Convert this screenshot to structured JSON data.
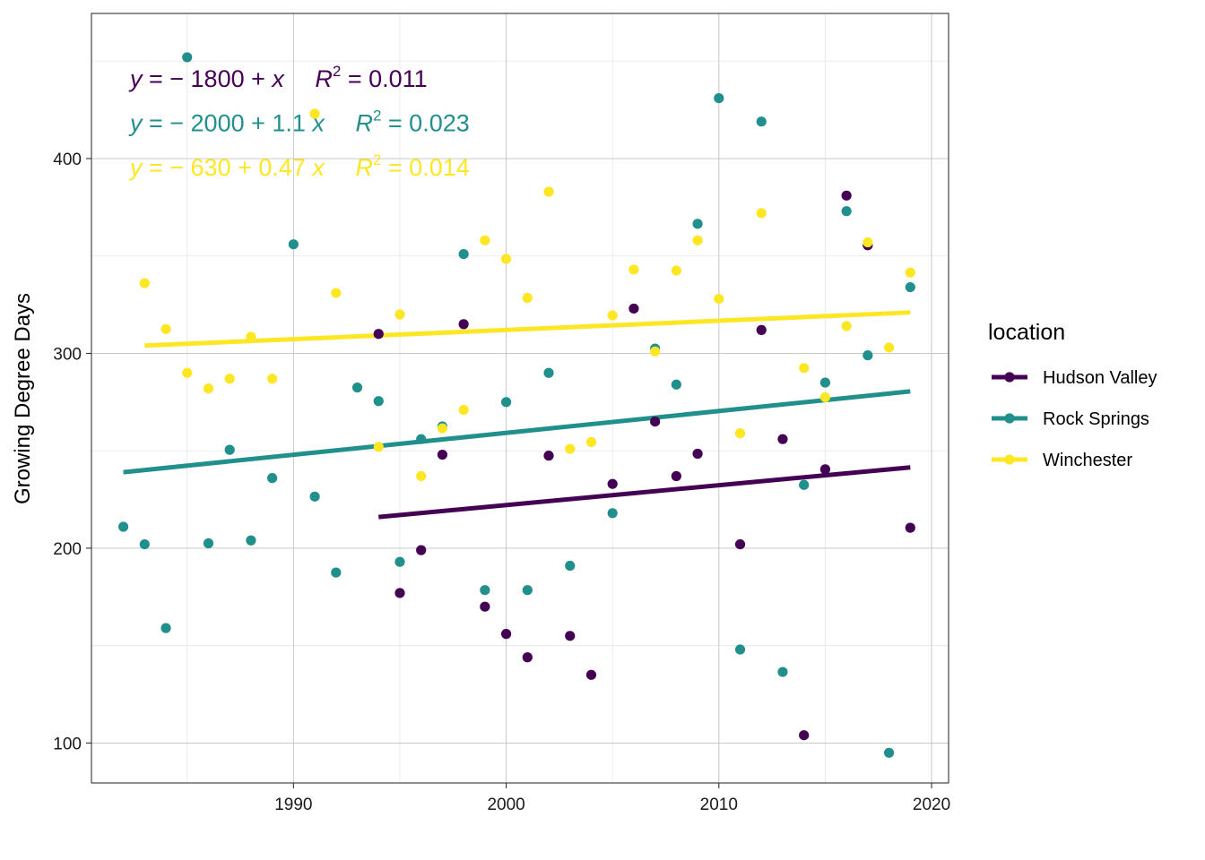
{
  "chart_data": {
    "type": "scatter",
    "ylabel": "Growing Degree Days",
    "xlabel": "",
    "xlim": [
      1980.5,
      2020.8
    ],
    "ylim": [
      79.5,
      474.5
    ],
    "x_ticks": [
      1990,
      2000,
      2010,
      2020
    ],
    "y_ticks": [
      100,
      200,
      300,
      400
    ],
    "x_tick_labels": [
      "1990",
      "2000",
      "2010",
      "2020"
    ],
    "y_tick_labels": [
      "100",
      "200",
      "300",
      "400"
    ],
    "grid": true,
    "legend": {
      "title": "location",
      "placement": "right"
    },
    "series": [
      {
        "name": "Hudson Valley",
        "color": "#440154",
        "equation": {
          "prefix": "y = − 1800 + ",
          "x_slope_label": "x",
          "r2_value": "= 0.011"
        },
        "fit": {
          "x": [
            1994,
            2019
          ],
          "y": [
            216,
            241.5
          ]
        },
        "points": [
          [
            1994,
            310
          ],
          [
            1995,
            177
          ],
          [
            1996,
            199
          ],
          [
            1997,
            248
          ],
          [
            1998,
            315
          ],
          [
            1999,
            170
          ],
          [
            2000,
            156
          ],
          [
            2001,
            144
          ],
          [
            2002,
            247.5
          ],
          [
            2003,
            155
          ],
          [
            2004,
            135
          ],
          [
            2005,
            233
          ],
          [
            2006,
            323
          ],
          [
            2007,
            265
          ],
          [
            2008,
            237
          ],
          [
            2009,
            248.5
          ],
          [
            2011,
            202
          ],
          [
            2012,
            312
          ],
          [
            2013,
            256
          ],
          [
            2014,
            104
          ],
          [
            2015,
            240.5
          ],
          [
            2016,
            381
          ],
          [
            2017,
            355.5
          ],
          [
            2019,
            210.5
          ]
        ]
      },
      {
        "name": "Rock Springs",
        "color": "#21908C",
        "equation": {
          "prefix": "y = − 2000 + 1.1 ",
          "x_slope_label": "x",
          "r2_value": "= 0.023"
        },
        "fit": {
          "x": [
            1982,
            2019
          ],
          "y": [
            239,
            280.5
          ]
        },
        "points": [
          [
            1982,
            211
          ],
          [
            1983,
            202
          ],
          [
            1984,
            159
          ],
          [
            1985,
            452
          ],
          [
            1986,
            202.5
          ],
          [
            1987,
            250.5
          ],
          [
            1988,
            204
          ],
          [
            1989,
            236
          ],
          [
            1990,
            356
          ],
          [
            1991,
            226.5
          ],
          [
            1992,
            187.5
          ],
          [
            1993,
            282.5
          ],
          [
            1994,
            275.5
          ],
          [
            1995,
            193
          ],
          [
            1996,
            256
          ],
          [
            1997,
            262.5
          ],
          [
            1998,
            351
          ],
          [
            1999,
            178.5
          ],
          [
            2000,
            275
          ],
          [
            2001,
            178.5
          ],
          [
            2002,
            290
          ],
          [
            2003,
            191
          ],
          [
            2005,
            218
          ],
          [
            2007,
            302.5
          ],
          [
            2008,
            284
          ],
          [
            2009,
            366.5
          ],
          [
            2010,
            431
          ],
          [
            2011,
            148
          ],
          [
            2012,
            419
          ],
          [
            2013,
            136.5
          ],
          [
            2014,
            232.5
          ],
          [
            2015,
            285
          ],
          [
            2016,
            373
          ],
          [
            2017,
            299
          ],
          [
            2018,
            95
          ],
          [
            2019,
            334
          ]
        ]
      },
      {
        "name": "Winchester",
        "color": "#FDE725",
        "equation": {
          "prefix": "y = − 630 + 0.47 ",
          "x_slope_label": "x",
          "r2_value": "= 0.014"
        },
        "fit": {
          "x": [
            1983,
            2019
          ],
          "y": [
            304,
            321
          ]
        },
        "points": [
          [
            1983,
            336
          ],
          [
            1984,
            312.5
          ],
          [
            1985,
            290
          ],
          [
            1986,
            282
          ],
          [
            1987,
            287
          ],
          [
            1988,
            308.5
          ],
          [
            1989,
            287
          ],
          [
            1991,
            423
          ],
          [
            1992,
            331
          ],
          [
            1994,
            252
          ],
          [
            1995,
            320
          ],
          [
            1996,
            237
          ],
          [
            1997,
            261.5
          ],
          [
            1998,
            271
          ],
          [
            1999,
            358
          ],
          [
            2000,
            348.5
          ],
          [
            2001,
            328.5
          ],
          [
            2002,
            383
          ],
          [
            2003,
            251
          ],
          [
            2004,
            254.5
          ],
          [
            2005,
            319.5
          ],
          [
            2006,
            343
          ],
          [
            2007,
            301
          ],
          [
            2008,
            342.5
          ],
          [
            2009,
            358
          ],
          [
            2010,
            328
          ],
          [
            2011,
            259
          ],
          [
            2012,
            372
          ],
          [
            2014,
            292.5
          ],
          [
            2015,
            277.5
          ],
          [
            2016,
            314
          ],
          [
            2017,
            357
          ],
          [
            2018,
            303
          ],
          [
            2019,
            341.5
          ]
        ]
      }
    ]
  }
}
